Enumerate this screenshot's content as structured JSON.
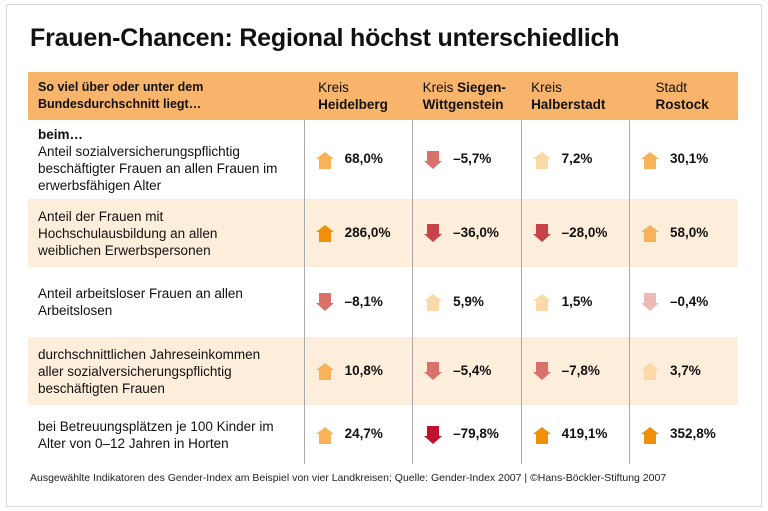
{
  "title": "Frauen-Chancen: Regional höchst unterschiedlich",
  "footer": "Ausgewählte Indikatoren des Gender-Index am Beispiel von vier Landkreisen; Quelle: Gender-Index 2007 | ©Hans-Böckler-Stiftung 2007",
  "colors": {
    "header": "#f7b46a",
    "alt_row": "#fdeedb",
    "up_strong": "#f0900a",
    "up_medium": "#f8b35a",
    "up_light": "#fcd9a8",
    "down_light": "#ecbcb4",
    "down_medium": "#d9706a",
    "down_strong": "#c8424a",
    "down_darkest": "#c0102a"
  },
  "chart_data": {
    "type": "table",
    "header_label": "So viel über oder unter dem Bundesdurchschnitt liegt…",
    "columns": [
      {
        "pre": "Kreis",
        "name": "Heidelberg"
      },
      {
        "pre": "Kreis",
        "name": "Siegen-Wittgenstein"
      },
      {
        "pre": "Kreis",
        "name": "Halberstadt"
      },
      {
        "pre": "Stadt",
        "name": "Rostock"
      }
    ],
    "rows": [
      {
        "prefix": "beim…",
        "label": "Anteil sozialversicherungspflichtig beschäftigter Frauen an allen Frauen im erwerbsfähigen Alter",
        "values": [
          "68,0%",
          "–5,7%",
          "7,2%",
          "30,1%"
        ],
        "arrows": [
          "up_medium",
          "down_medium",
          "up_light",
          "up_medium"
        ]
      },
      {
        "label": "Anteil der Frauen mit Hochschulausbildung an allen weiblichen Erwerbspersonen",
        "values": [
          "286,0%",
          "–36,0%",
          "–28,0%",
          "58,0%"
        ],
        "arrows": [
          "up_strong",
          "down_strong",
          "down_strong",
          "up_medium"
        ]
      },
      {
        "label": "Anteil arbeitsloser Frauen an allen Arbeitslosen",
        "values": [
          "–8,1%",
          "5,9%",
          "1,5%",
          "–0,4%"
        ],
        "arrows": [
          "down_medium",
          "up_light",
          "up_light",
          "down_light"
        ]
      },
      {
        "label": "durchschnittlichen Jahreseinkommen aller sozialversicherungspflichtig beschäftigten Frauen",
        "values": [
          "10,8%",
          "–5,4%",
          "–7,8%",
          "3,7%"
        ],
        "arrows": [
          "up_medium",
          "down_medium",
          "down_medium",
          "up_light"
        ]
      },
      {
        "label": "bei Betreuungsplätzen je 100 Kinder im Alter von 0–12 Jahren in Horten",
        "values": [
          "24,7%",
          "–79,8%",
          "419,1%",
          "352,8%"
        ],
        "arrows": [
          "up_medium",
          "down_darkest",
          "up_strong",
          "up_strong"
        ]
      }
    ]
  }
}
